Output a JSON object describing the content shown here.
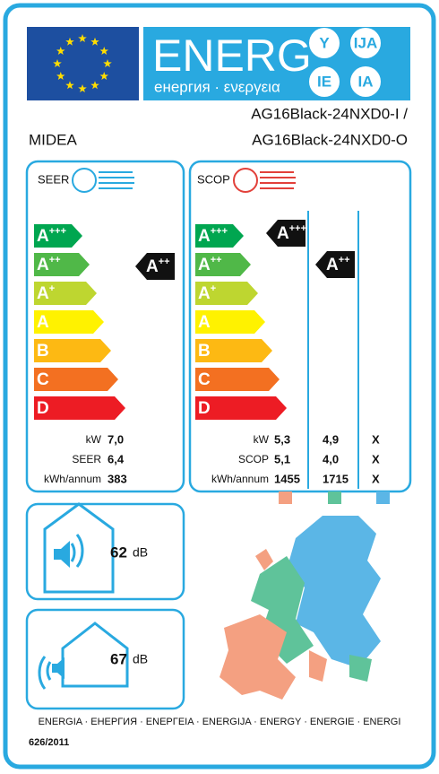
{
  "header": {
    "title": "ENERG",
    "subtitle": "енергия · ενεργεια",
    "letters": [
      "Y",
      "IJA",
      "IE",
      "IA"
    ]
  },
  "supplier": "MIDEA",
  "model": [
    "AG16Black-24NXD0-I /",
    "AG16Black-24NXD0-O"
  ],
  "cooling": {
    "label": "SEER",
    "classes": [
      {
        "letter": "A",
        "sup": "+++"
      },
      {
        "letter": "A",
        "sup": "++"
      },
      {
        "letter": "A",
        "sup": "+"
      },
      {
        "letter": "A"
      },
      {
        "letter": "B"
      },
      {
        "letter": "C"
      },
      {
        "letter": "D"
      }
    ],
    "rating": {
      "letter": "A",
      "sup": "++"
    },
    "rows": [
      {
        "label": "kW",
        "value": "7,0"
      },
      {
        "label": "SEER",
        "value": "6,4"
      },
      {
        "label": "kWh/annum",
        "value": "383"
      }
    ]
  },
  "heating": {
    "label": "SCOP",
    "classes": [
      {
        "letter": "A",
        "sup": "+++"
      },
      {
        "letter": "A",
        "sup": "++"
      },
      {
        "letter": "A",
        "sup": "+"
      },
      {
        "letter": "A"
      },
      {
        "letter": "B"
      },
      {
        "letter": "C"
      },
      {
        "letter": "D"
      }
    ],
    "ratings": [
      {
        "letter": "A",
        "sup": "+++"
      },
      {
        "letter": "A",
        "sup": "++"
      }
    ],
    "rows": [
      {
        "label": "kW",
        "values": [
          "5,3",
          "4,9",
          "X"
        ]
      },
      {
        "label": "SCOP",
        "values": [
          "5,1",
          "4,0",
          "X"
        ]
      },
      {
        "label": "kWh/annum",
        "values": [
          "1455",
          "1715",
          "X"
        ]
      }
    ]
  },
  "noise": [
    {
      "value": "62",
      "unit": "dB"
    },
    {
      "value": "67",
      "unit": "dB"
    }
  ],
  "footer": {
    "languages": "ENERGIA · ЕНЕРГИЯ · ΕΝΕΡΓΕΙΑ · ENERGIJA · ENERGY · ENERGIE · ENERGI",
    "regulation": "626/2011"
  }
}
